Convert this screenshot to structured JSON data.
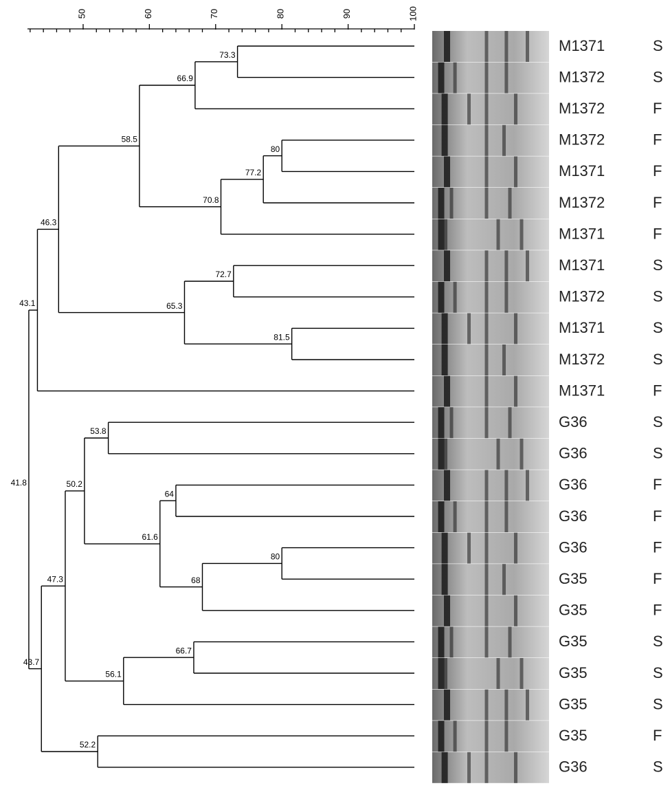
{
  "chart_data": {
    "type": "dendrogram",
    "xlim": [
      41.6,
      100
    ],
    "xticks": [
      50,
      60,
      70,
      80,
      90,
      100
    ],
    "minor_xticks": [
      42,
      44,
      46,
      48,
      52,
      54,
      56,
      58,
      62,
      64,
      66,
      68,
      72,
      74,
      76,
      78,
      82,
      84,
      86,
      88,
      92,
      94,
      96,
      98
    ],
    "color": "#000000",
    "tree": {
      "value": 41.8,
      "children": [
        {
          "value": 43.1,
          "children": [
            {
              "value": 46.3,
              "children": [
                {
                  "value": 58.5,
                  "children": [
                    {
                      "value": 66.9,
                      "children": [
                        {
                          "value": 73.3,
                          "children": [
                            {
                              "name": "M1371",
                              "group": "S"
                            },
                            {
                              "name": "M1372",
                              "group": "S"
                            }
                          ]
                        },
                        {
                          "name": "M1372",
                          "group": "F"
                        }
                      ]
                    },
                    {
                      "value": 70.8,
                      "children": [
                        {
                          "value": 77.2,
                          "children": [
                            {
                              "value": 80,
                              "children": [
                                {
                                  "name": "M1372",
                                  "group": "F"
                                },
                                {
                                  "name": "M1371",
                                  "group": "F"
                                }
                              ]
                            },
                            {
                              "name": "M1372",
                              "group": "F"
                            }
                          ]
                        },
                        {
                          "name": "M1371",
                          "group": "F"
                        }
                      ]
                    }
                  ]
                },
                {
                  "value": 65.3,
                  "children": [
                    {
                      "value": 72.7,
                      "children": [
                        {
                          "name": "M1371",
                          "group": "S"
                        },
                        {
                          "name": "M1372",
                          "group": "S"
                        }
                      ]
                    },
                    {
                      "value": 81.5,
                      "children": [
                        {
                          "name": "M1371",
                          "group": "S"
                        },
                        {
                          "name": "M1372",
                          "group": "S"
                        }
                      ]
                    }
                  ]
                }
              ]
            },
            {
              "name": "M1371",
              "group": "F"
            }
          ]
        },
        {
          "value": 43.7,
          "children": [
            {
              "value": 47.3,
              "children": [
                {
                  "value": 50.2,
                  "children": [
                    {
                      "value": 53.8,
                      "children": [
                        {
                          "name": "G36",
                          "group": "S"
                        },
                        {
                          "name": "G36",
                          "group": "S"
                        }
                      ]
                    },
                    {
                      "value": 61.6,
                      "children": [
                        {
                          "value": 64,
                          "children": [
                            {
                              "name": "G36",
                              "group": "F"
                            },
                            {
                              "name": "G36",
                              "group": "F"
                            }
                          ]
                        },
                        {
                          "value": 68,
                          "children": [
                            {
                              "value": 80,
                              "children": [
                                {
                                  "name": "G36",
                                  "group": "F"
                                },
                                {
                                  "name": "G35",
                                  "group": "F"
                                }
                              ]
                            },
                            {
                              "name": "G35",
                              "group": "F"
                            }
                          ]
                        }
                      ]
                    }
                  ]
                },
                {
                  "value": 56.1,
                  "children": [
                    {
                      "value": 66.7,
                      "children": [
                        {
                          "name": "G35",
                          "group": "S"
                        },
                        {
                          "name": "G35",
                          "group": "S"
                        }
                      ]
                    },
                    {
                      "name": "G35",
                      "group": "S"
                    }
                  ]
                }
              ]
            },
            {
              "value": 52.2,
              "children": [
                {
                  "name": "G35",
                  "group": "F"
                },
                {
                  "name": "G36",
                  "group": "S"
                }
              ]
            }
          ]
        }
      ]
    }
  }
}
